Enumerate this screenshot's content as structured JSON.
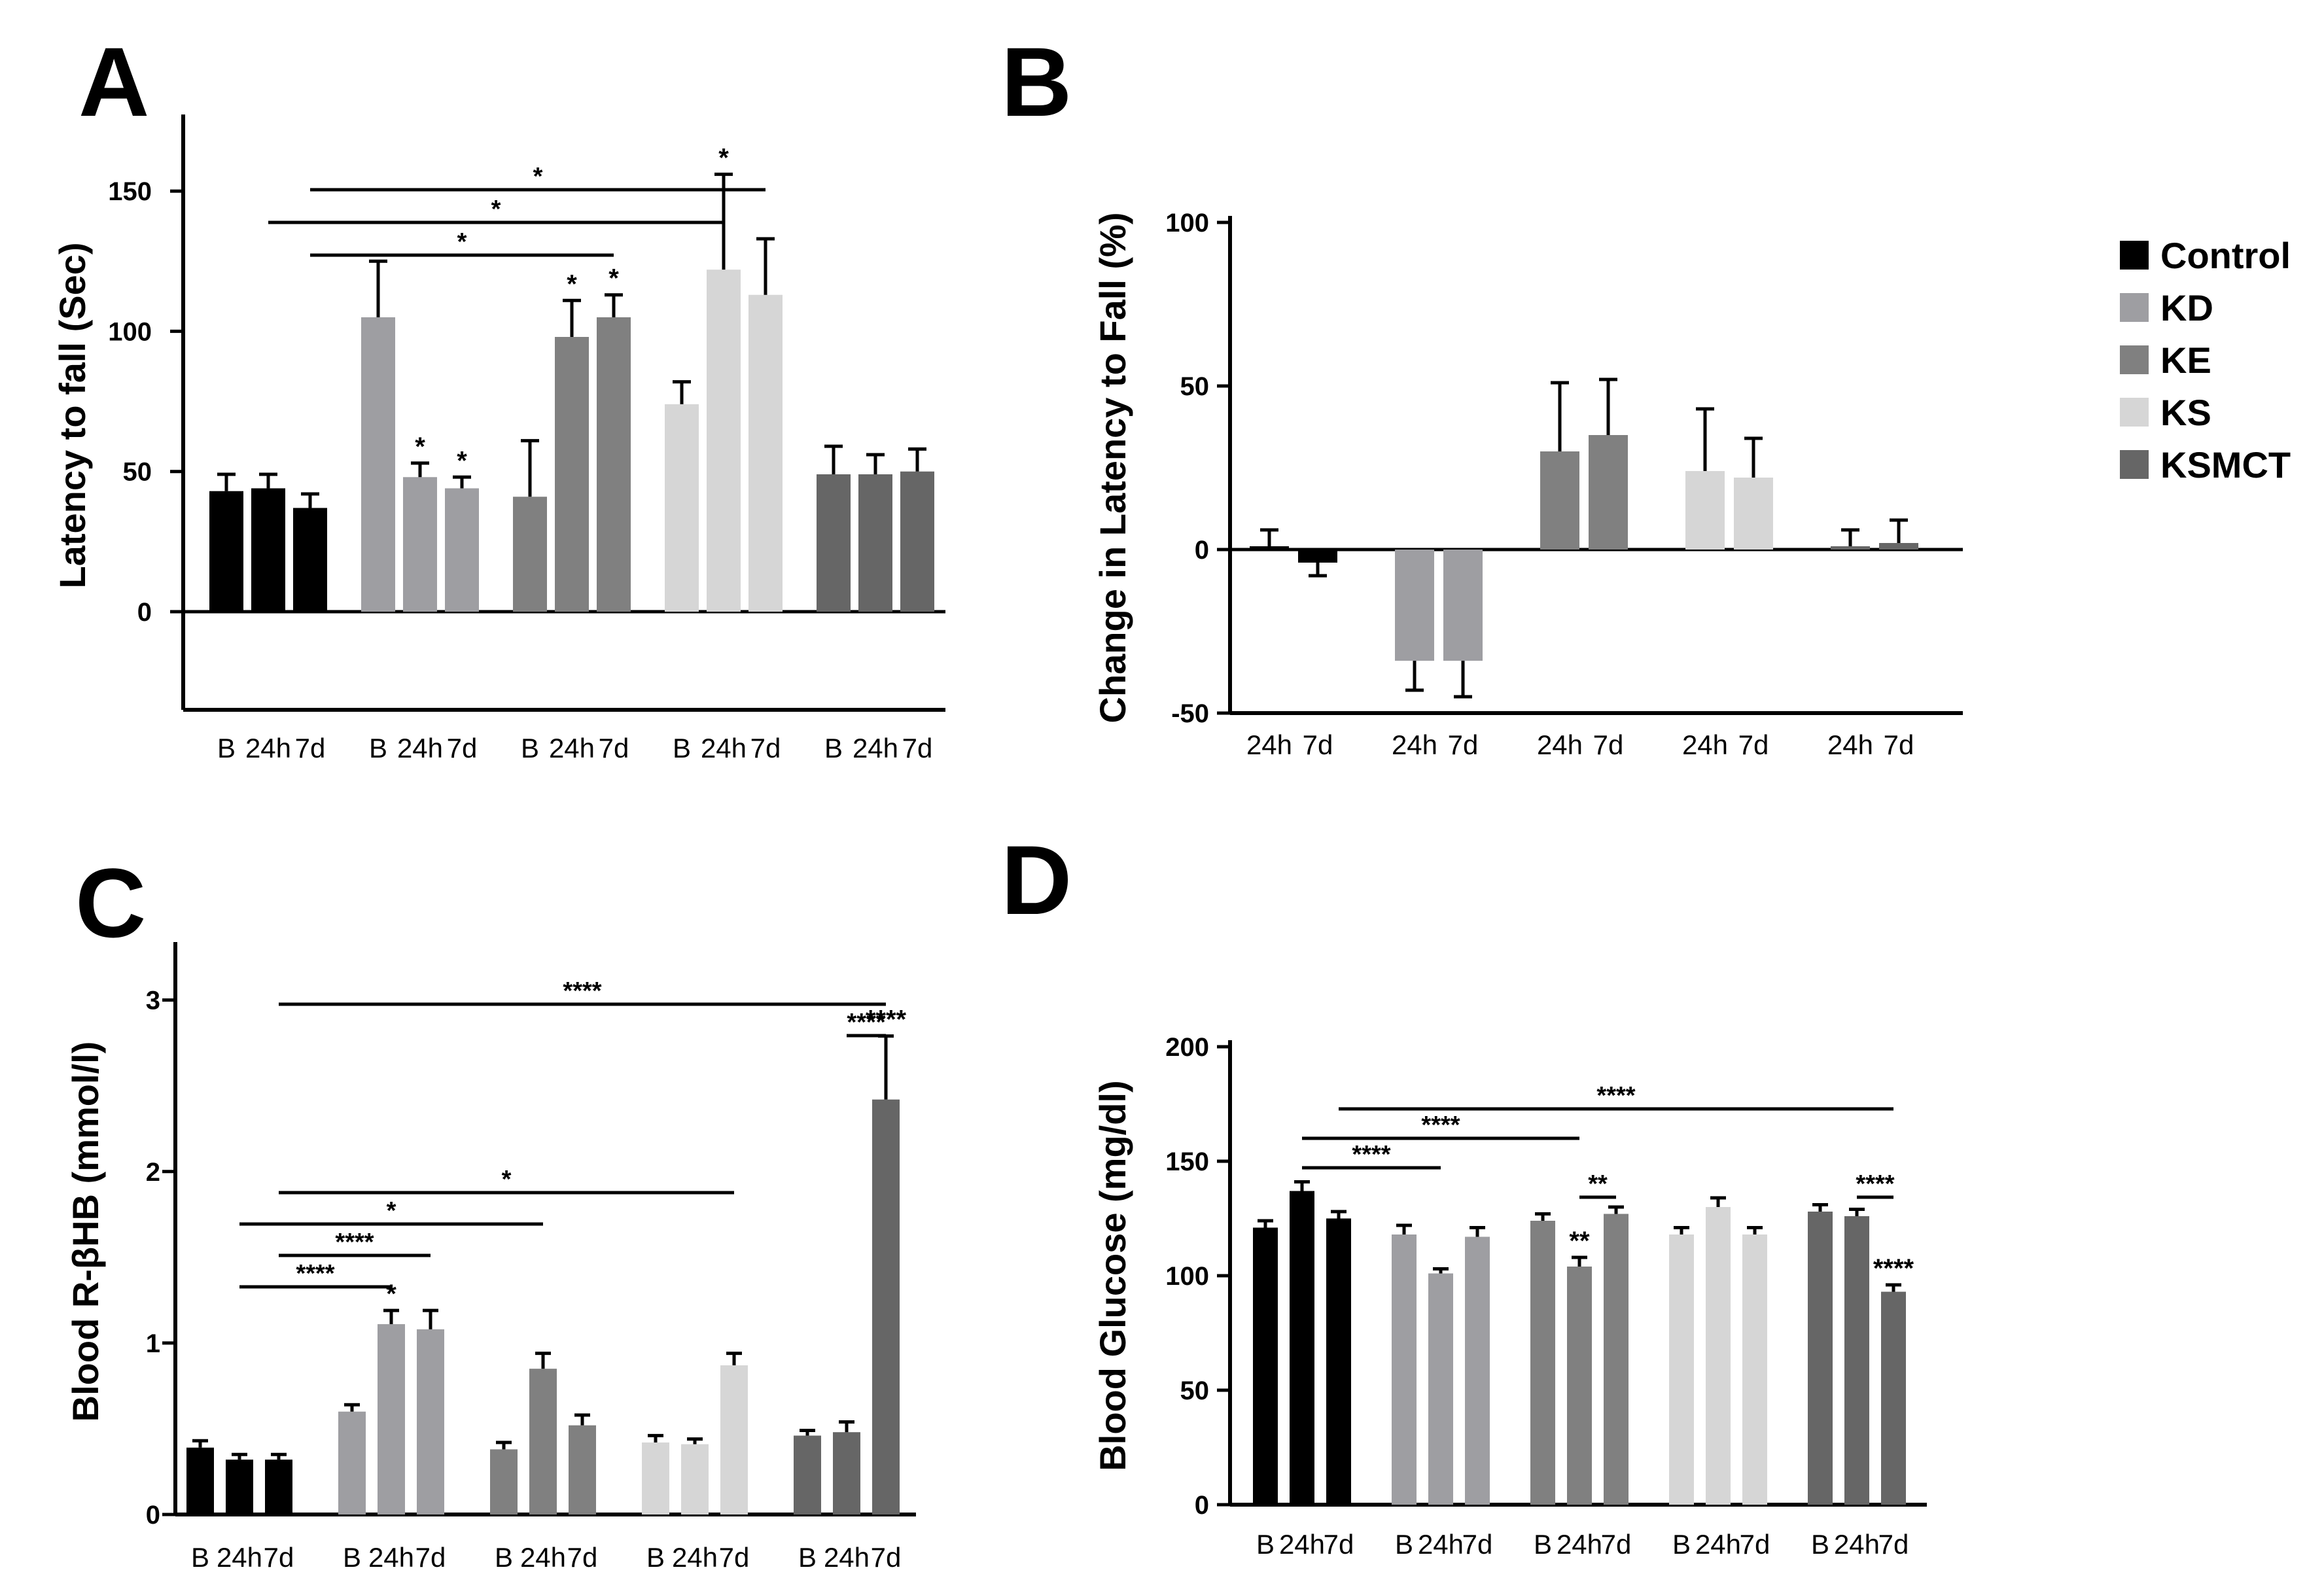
{
  "panels": {
    "A": "A",
    "B": "B",
    "C": "C",
    "D": "D"
  },
  "colors": {
    "Control": "#000000",
    "KD": "#9e9ea2",
    "KE": "#808080",
    "KS": "#d6d6d6",
    "KSMCT": "#666666"
  },
  "legend": [
    {
      "label": "Control",
      "color": "#000000"
    },
    {
      "label": "KD",
      "color": "#9e9ea2"
    },
    {
      "label": "KE",
      "color": "#808080"
    },
    {
      "label": "KS",
      "color": "#d6d6d6"
    },
    {
      "label": "KSMCT",
      "color": "#666666"
    }
  ],
  "chart_data": [
    {
      "panel": "A",
      "type": "bar",
      "ylabel": "Latency to fall (Sec)",
      "yticks": [
        0,
        50,
        100,
        150
      ],
      "ylim": [
        0,
        150
      ],
      "groups": [
        "Control",
        "KD",
        "KE",
        "KS",
        "KSMCT"
      ],
      "xticklabels": [
        [
          "B",
          "24h",
          "7d"
        ],
        [
          "B",
          "24h",
          "7d"
        ],
        [
          "B",
          "24h",
          "7d"
        ],
        [
          "B",
          "24h",
          "7d"
        ],
        [
          "B",
          "24h",
          "7d"
        ]
      ],
      "series": [
        {
          "group": "Control",
          "values": [
            43,
            44,
            37
          ],
          "errors": [
            6,
            5,
            5
          ]
        },
        {
          "group": "KD",
          "values": [
            105,
            48,
            44
          ],
          "errors": [
            20,
            5,
            4
          ]
        },
        {
          "group": "KE",
          "values": [
            41,
            98,
            105
          ],
          "errors": [
            20,
            13,
            8
          ]
        },
        {
          "group": "KS",
          "values": [
            74,
            122,
            113
          ],
          "errors": [
            8,
            34,
            20
          ]
        },
        {
          "group": "KSMCT",
          "values": [
            49,
            49,
            50
          ],
          "errors": [
            10,
            7,
            8
          ]
        }
      ],
      "bar_marks": [
        {
          "group": 1,
          "bar": 1,
          "text": "*"
        },
        {
          "group": 1,
          "bar": 2,
          "text": "*"
        },
        {
          "group": 2,
          "bar": 1,
          "text": "*"
        },
        {
          "group": 2,
          "bar": 2,
          "text": "*"
        },
        {
          "group": 3,
          "bar": 1,
          "text": "*"
        }
      ],
      "comparisons": [
        {
          "from": [
            0,
            2
          ],
          "to": [
            3,
            2
          ],
          "level": 0,
          "text": "*"
        },
        {
          "from": [
            0,
            1
          ],
          "to": [
            3,
            1
          ],
          "level": 1,
          "text": "*"
        },
        {
          "from": [
            0,
            2
          ],
          "to": [
            2,
            2
          ],
          "level": 2,
          "text": "*"
        }
      ]
    },
    {
      "panel": "B",
      "type": "bar",
      "ylabel": "Change in Latency to Fall (%)",
      "yticks": [
        -50,
        0,
        50,
        100
      ],
      "ylim": [
        -50,
        100
      ],
      "groups": [
        "Control",
        "KD",
        "KE",
        "KS",
        "KSMCT"
      ],
      "xticklabels": [
        [
          "24h",
          "7d"
        ],
        [
          "24h",
          "7d"
        ],
        [
          "24h",
          "7d"
        ],
        [
          "24h",
          "7d"
        ],
        [
          "24h",
          "7d"
        ]
      ],
      "series": [
        {
          "group": "Control",
          "values": [
            1,
            -4
          ],
          "errors": [
            5,
            4
          ]
        },
        {
          "group": "KD",
          "values": [
            -34,
            -34
          ],
          "errors": [
            9,
            11
          ]
        },
        {
          "group": "KE",
          "values": [
            30,
            35
          ],
          "errors": [
            21,
            17
          ]
        },
        {
          "group": "KS",
          "values": [
            24,
            22
          ],
          "errors": [
            19,
            12
          ]
        },
        {
          "group": "KSMCT",
          "values": [
            1,
            2
          ],
          "errors": [
            5,
            7
          ]
        }
      ]
    },
    {
      "panel": "C",
      "type": "bar",
      "ylabel": "Blood R-βHB (mmol/l)",
      "yticks": [
        0,
        1,
        2,
        3
      ],
      "ylim": [
        0,
        3.3
      ],
      "groups": [
        "Control",
        "KD",
        "KE",
        "KS",
        "KSMCT"
      ],
      "xticklabels": [
        [
          "B",
          "24h",
          "7d"
        ],
        [
          "B",
          "24h",
          "7d"
        ],
        [
          "B",
          "24h",
          "7d"
        ],
        [
          "B",
          "24h",
          "7d"
        ],
        [
          "B",
          "24h",
          "7d"
        ]
      ],
      "series": [
        {
          "group": "Control",
          "values": [
            0.39,
            0.32,
            0.32
          ],
          "errors": [
            0.04,
            0.03,
            0.03
          ]
        },
        {
          "group": "KD",
          "values": [
            0.6,
            1.11,
            1.08
          ],
          "errors": [
            0.04,
            0.08,
            0.11
          ]
        },
        {
          "group": "KE",
          "values": [
            0.38,
            0.85,
            0.52
          ],
          "errors": [
            0.04,
            0.09,
            0.06
          ]
        },
        {
          "group": "KS",
          "values": [
            0.42,
            0.41,
            0.87
          ],
          "errors": [
            0.04,
            0.03,
            0.07
          ]
        },
        {
          "group": "KSMCT",
          "values": [
            0.46,
            0.48,
            2.42
          ],
          "errors": [
            0.03,
            0.06,
            0.37
          ]
        }
      ],
      "bar_marks": [
        {
          "group": 1,
          "bar": 1,
          "text": "*"
        },
        {
          "group": 4,
          "bar": 2,
          "text": "****"
        }
      ],
      "comparisons": [
        {
          "from": [
            0,
            2
          ],
          "to": [
            4,
            2
          ],
          "level": 0,
          "text": "****"
        },
        {
          "from": [
            4,
            1
          ],
          "to": [
            4,
            2
          ],
          "level": 1,
          "text": "****"
        },
        {
          "from": [
            0,
            2
          ],
          "to": [
            3,
            2
          ],
          "level": 6,
          "text": "*"
        },
        {
          "from": [
            0,
            1
          ],
          "to": [
            2,
            1
          ],
          "level": 7,
          "text": "*"
        },
        {
          "from": [
            0,
            2
          ],
          "to": [
            1,
            2
          ],
          "level": 8,
          "text": "****"
        },
        {
          "from": [
            0,
            1
          ],
          "to": [
            1,
            1
          ],
          "level": 9,
          "text": "****"
        }
      ]
    },
    {
      "panel": "D",
      "type": "bar",
      "ylabel": "Blood Glucose (mg/dl)",
      "yticks": [
        0,
        50,
        100,
        150,
        200
      ],
      "ylim": [
        0,
        200
      ],
      "groups": [
        "Control",
        "KD",
        "KE",
        "KS",
        "KSMCT"
      ],
      "xticklabels": [
        [
          "B",
          "24h",
          "7d"
        ],
        [
          "B",
          "24h",
          "7d"
        ],
        [
          "B",
          "24h",
          "7d"
        ],
        [
          "B",
          "24h",
          "7d"
        ],
        [
          "B",
          "24h",
          "7d"
        ]
      ],
      "series": [
        {
          "group": "Control",
          "values": [
            121,
            137,
            125
          ],
          "errors": [
            3,
            4,
            3
          ]
        },
        {
          "group": "KD",
          "values": [
            118,
            101,
            117
          ],
          "errors": [
            4,
            2,
            4
          ]
        },
        {
          "group": "KE",
          "values": [
            124,
            104,
            127
          ],
          "errors": [
            3,
            4,
            3
          ]
        },
        {
          "group": "KS",
          "values": [
            118,
            130,
            118
          ],
          "errors": [
            3,
            4,
            3
          ]
        },
        {
          "group": "KSMCT",
          "values": [
            128,
            126,
            93
          ],
          "errors": [
            3,
            3,
            3
          ]
        }
      ],
      "bar_marks": [
        {
          "group": 2,
          "bar": 1,
          "text": "**"
        },
        {
          "group": 4,
          "bar": 2,
          "text": "****"
        }
      ],
      "comparisons": [
        {
          "from": [
            0,
            2
          ],
          "to": [
            4,
            2
          ],
          "level": 0,
          "text": "****"
        },
        {
          "from": [
            0,
            1
          ],
          "to": [
            2,
            1
          ],
          "level": 1,
          "text": "****"
        },
        {
          "from": [
            0,
            1
          ],
          "to": [
            1,
            1
          ],
          "level": 2,
          "text": "****"
        },
        {
          "from": [
            2,
            1
          ],
          "to": [
            2,
            2
          ],
          "level": 3,
          "text": "**"
        },
        {
          "from": [
            4,
            1
          ],
          "to": [
            4,
            2
          ],
          "level": 3,
          "text": "****"
        }
      ]
    }
  ]
}
